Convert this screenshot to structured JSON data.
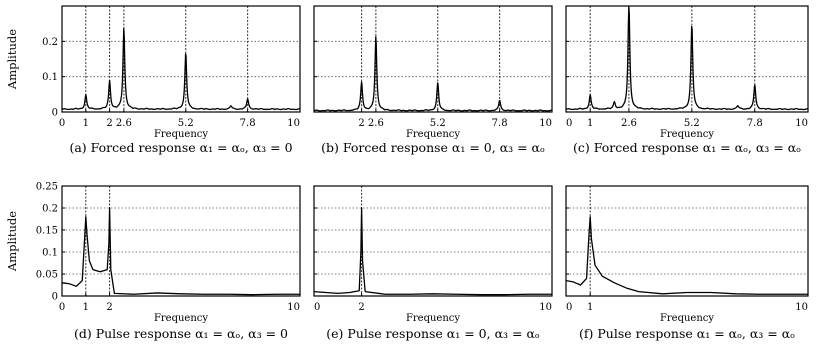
{
  "chart_data": [
    {
      "type": "line",
      "xlim": [
        0,
        10
      ],
      "ylim": [
        0,
        0.3
      ],
      "grid": true,
      "xlabel": "Frequency",
      "ylabel": "Amplitude",
      "xticks": [
        0,
        1,
        2,
        2.6,
        5.2,
        7.8,
        10
      ],
      "xtick_labels": [
        "0",
        "1",
        "2",
        "2.6",
        "5.2",
        "7.8",
        "10"
      ],
      "yticks": [
        0,
        0.1,
        0.2
      ],
      "ytick_labels": [
        "0",
        "0.1",
        "0.2"
      ],
      "vlines": [
        1,
        2,
        2.6,
        5.2,
        7.8
      ],
      "baseline": 0.007,
      "peaks": [
        {
          "x": 1,
          "y": 0.04
        },
        {
          "x": 2,
          "y": 0.08
        },
        {
          "x": 2.6,
          "y": 0.23
        },
        {
          "x": 5.2,
          "y": 0.16
        },
        {
          "x": 7.1,
          "y": 0.01
        },
        {
          "x": 7.8,
          "y": 0.03
        }
      ],
      "caption": "(a) Forced response α₁ = αₒ, α₃ = 0"
    },
    {
      "type": "line",
      "xlim": [
        0,
        10
      ],
      "ylim": [
        0,
        0.3
      ],
      "grid": true,
      "xlabel": "Frequency",
      "ylabel": "",
      "xticks": [
        0,
        2,
        2.6,
        5.2,
        7.8,
        10
      ],
      "xtick_labels": [
        "",
        "2",
        "2.6",
        "5.2",
        "7.8",
        "10"
      ],
      "yticks": [
        0,
        0.1,
        0.2
      ],
      "ytick_labels": [
        "",
        "",
        ""
      ],
      "vlines": [
        2,
        2.6,
        5.2,
        7.8
      ],
      "baseline": 0.003,
      "peaks": [
        {
          "x": 2,
          "y": 0.08
        },
        {
          "x": 2.6,
          "y": 0.21
        },
        {
          "x": 5.2,
          "y": 0.08
        },
        {
          "x": 7.8,
          "y": 0.03
        }
      ],
      "caption": "(b) Forced response α₁ = 0, α₃ = αₒ"
    },
    {
      "type": "line",
      "xlim": [
        0,
        10
      ],
      "ylim": [
        0,
        0.3
      ],
      "grid": true,
      "xlabel": "Frequency",
      "ylabel": "",
      "xticks": [
        0,
        1,
        2.6,
        5.2,
        7.8,
        10
      ],
      "xtick_labels": [
        "0",
        "1",
        "2.6",
        "5.2",
        "7.8",
        "10"
      ],
      "yticks": [
        0,
        0.1,
        0.2
      ],
      "ytick_labels": [
        "",
        "",
        ""
      ],
      "vlines": [
        1,
        2.6,
        5.2,
        7.8
      ],
      "baseline": 0.007,
      "peaks": [
        {
          "x": 1,
          "y": 0.04
        },
        {
          "x": 2,
          "y": 0.02
        },
        {
          "x": 2.6,
          "y": 0.3
        },
        {
          "x": 5.2,
          "y": 0.24
        },
        {
          "x": 7.1,
          "y": 0.01
        },
        {
          "x": 7.8,
          "y": 0.07
        }
      ],
      "caption": "(c) Forced response α₁ = αₒ, α₃ = αₒ"
    },
    {
      "type": "line",
      "xlim": [
        0,
        10
      ],
      "ylim": [
        0,
        0.25
      ],
      "grid": true,
      "xlabel": "Frequency",
      "ylabel": "Amplitude",
      "xticks": [
        0,
        1,
        2,
        10
      ],
      "xtick_labels": [
        "0",
        "1",
        "2",
        "10"
      ],
      "yticks": [
        0,
        0.05,
        0.1,
        0.15,
        0.2,
        0.25
      ],
      "ytick_labels": [
        "0",
        "0.05",
        "0.1",
        "0.15",
        "0.2",
        "0.25"
      ],
      "vlines": [
        1,
        2
      ],
      "points": [
        [
          0,
          0.03
        ],
        [
          0.3,
          0.028
        ],
        [
          0.6,
          0.022
        ],
        [
          0.85,
          0.035
        ],
        [
          0.95,
          0.13
        ],
        [
          1.0,
          0.18
        ],
        [
          1.05,
          0.14
        ],
        [
          1.15,
          0.08
        ],
        [
          1.3,
          0.06
        ],
        [
          1.6,
          0.055
        ],
        [
          1.9,
          0.06
        ],
        [
          1.97,
          0.12
        ],
        [
          2.0,
          0.2
        ],
        [
          2.05,
          0.06
        ],
        [
          2.2,
          0.006
        ],
        [
          3,
          0.004
        ],
        [
          4,
          0.007
        ],
        [
          5,
          0.005
        ],
        [
          6,
          0.004
        ],
        [
          7,
          0.004
        ],
        [
          8,
          0.003
        ],
        [
          9,
          0.004
        ],
        [
          10,
          0.004
        ]
      ],
      "caption": "(d) Pulse response α₁ = αₒ, α₃ = 0"
    },
    {
      "type": "line",
      "xlim": [
        0,
        10
      ],
      "ylim": [
        0,
        0.25
      ],
      "grid": true,
      "xlabel": "Frequency",
      "ylabel": "",
      "xticks": [
        0,
        2,
        10
      ],
      "xtick_labels": [
        "0",
        "2",
        "10"
      ],
      "yticks": [
        0,
        0.05,
        0.1,
        0.15,
        0.2,
        0.25
      ],
      "ytick_labels": [
        "",
        "",
        "",
        "",
        "",
        ""
      ],
      "vlines": [
        2
      ],
      "points": [
        [
          0,
          0.01
        ],
        [
          0.5,
          0.008
        ],
        [
          1.0,
          0.006
        ],
        [
          1.5,
          0.008
        ],
        [
          1.9,
          0.012
        ],
        [
          1.97,
          0.1
        ],
        [
          2.0,
          0.2
        ],
        [
          2.04,
          0.08
        ],
        [
          2.15,
          0.01
        ],
        [
          3,
          0.004
        ],
        [
          4,
          0.004
        ],
        [
          5,
          0.005
        ],
        [
          6,
          0.004
        ],
        [
          7,
          0.003
        ],
        [
          8,
          0.003
        ],
        [
          9,
          0.004
        ],
        [
          10,
          0.004
        ]
      ],
      "caption": "(e) Pulse response α₁ = 0, α₃ = αₒ"
    },
    {
      "type": "line",
      "xlim": [
        0,
        10
      ],
      "ylim": [
        0,
        0.25
      ],
      "grid": true,
      "xlabel": "Frequency",
      "ylabel": "",
      "xticks": [
        0,
        1,
        10
      ],
      "xtick_labels": [
        "0",
        "1",
        "10"
      ],
      "yticks": [
        0,
        0.05,
        0.1,
        0.15,
        0.2,
        0.25
      ],
      "ytick_labels": [
        "",
        "",
        "",
        "",
        "",
        ""
      ],
      "vlines": [
        1
      ],
      "points": [
        [
          0,
          0.035
        ],
        [
          0.3,
          0.032
        ],
        [
          0.6,
          0.025
        ],
        [
          0.85,
          0.04
        ],
        [
          0.95,
          0.14
        ],
        [
          1.0,
          0.18
        ],
        [
          1.05,
          0.13
        ],
        [
          1.2,
          0.07
        ],
        [
          1.5,
          0.045
        ],
        [
          2,
          0.03
        ],
        [
          2.5,
          0.018
        ],
        [
          3,
          0.01
        ],
        [
          4,
          0.005
        ],
        [
          5,
          0.008
        ],
        [
          6,
          0.008
        ],
        [
          7,
          0.005
        ],
        [
          8,
          0.004
        ],
        [
          9,
          0.004
        ],
        [
          10,
          0.004
        ]
      ],
      "caption": "(f) Pulse response α₁ = αₒ, α₃ = αₒ"
    }
  ]
}
